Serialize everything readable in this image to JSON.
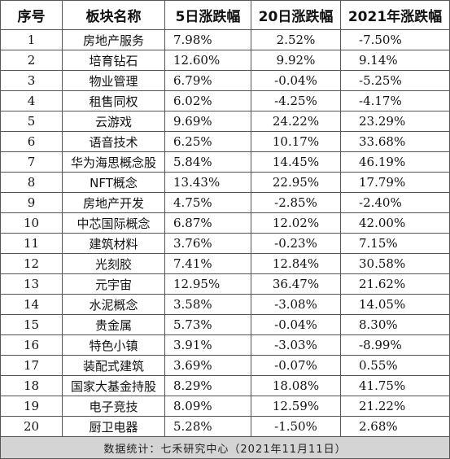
{
  "headers": [
    "序号",
    "板块名称",
    "5日涨跌幅",
    "20日涨跌幅",
    "2021年涨跌幅"
  ],
  "rows": [
    {
      "idx": "1",
      "name": "房地产服务",
      "d5": "7.98%",
      "d20": "2.52%",
      "y2021": "-7.50%"
    },
    {
      "idx": "2",
      "name": "培育钻石",
      "d5": "12.60%",
      "d20": "9.92%",
      "y2021": "9.14%"
    },
    {
      "idx": "3",
      "name": "物业管理",
      "d5": "6.79%",
      "d20": "-0.04%",
      "y2021": "-5.25%"
    },
    {
      "idx": "4",
      "name": "租售同权",
      "d5": "6.02%",
      "d20": "-4.25%",
      "y2021": "-4.17%"
    },
    {
      "idx": "5",
      "name": "云游戏",
      "d5": "9.69%",
      "d20": "24.22%",
      "y2021": "23.29%"
    },
    {
      "idx": "6",
      "name": "语音技术",
      "d5": "6.25%",
      "d20": "10.17%",
      "y2021": "33.68%"
    },
    {
      "idx": "7",
      "name": "华为海思概念股",
      "d5": "5.84%",
      "d20": "14.45%",
      "y2021": "46.19%"
    },
    {
      "idx": "8",
      "name": "NFT概念",
      "d5": "13.43%",
      "d20": "22.95%",
      "y2021": "17.79%"
    },
    {
      "idx": "9",
      "name": "房地产开发",
      "d5": "4.75%",
      "d20": "-2.85%",
      "y2021": "-2.40%"
    },
    {
      "idx": "10",
      "name": "中芯国际概念",
      "d5": "6.87%",
      "d20": "12.02%",
      "y2021": "42.00%"
    },
    {
      "idx": "11",
      "name": "建筑材料",
      "d5": "3.76%",
      "d20": "-0.23%",
      "y2021": "7.15%"
    },
    {
      "idx": "12",
      "name": "光刻胶",
      "d5": "7.41%",
      "d20": "12.84%",
      "y2021": "30.58%"
    },
    {
      "idx": "13",
      "name": "元宇宙",
      "d5": "12.95%",
      "d20": "36.47%",
      "y2021": "21.62%"
    },
    {
      "idx": "14",
      "name": "水泥概念",
      "d5": "3.58%",
      "d20": "-3.08%",
      "y2021": "14.05%"
    },
    {
      "idx": "15",
      "name": "贵金属",
      "d5": "5.73%",
      "d20": "-0.04%",
      "y2021": "8.30%"
    },
    {
      "idx": "16",
      "name": "特色小镇",
      "d5": "3.91%",
      "d20": "-3.03%",
      "y2021": "-8.99%"
    },
    {
      "idx": "17",
      "name": "装配式建筑",
      "d5": "3.69%",
      "d20": "-0.07%",
      "y2021": "0.55%"
    },
    {
      "idx": "18",
      "name": "国家大基金持股",
      "d5": "8.29%",
      "d20": "18.08%",
      "y2021": "41.75%"
    },
    {
      "idx": "19",
      "name": "电子竞技",
      "d5": "8.09%",
      "d20": "12.59%",
      "y2021": "21.22%"
    },
    {
      "idx": "20",
      "name": "厨卫电器",
      "d5": "5.28%",
      "d20": "-1.50%",
      "y2021": "2.68%"
    }
  ],
  "footer": "数据统计：七禾研究中心（2021年11月11日）",
  "colors": {
    "footer_bg": "#d4d4d4",
    "border": "#555555",
    "text": "#111111"
  }
}
